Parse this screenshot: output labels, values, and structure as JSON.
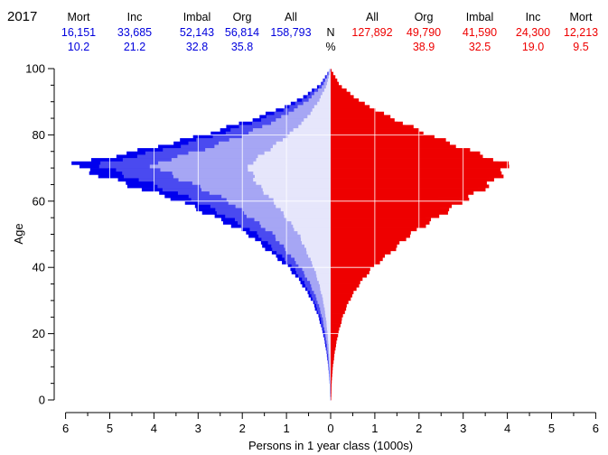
{
  "chart_data": {
    "type": "population-pyramid",
    "year": "2017",
    "xlabel": "Persons in 1 year class (1000s)",
    "ylabel": "Age",
    "xlim": [
      -6,
      6
    ],
    "ylim": [
      0,
      100
    ],
    "x_ticks": [
      "6",
      "5",
      "4",
      "3",
      "2",
      "1",
      "0",
      "1",
      "2",
      "3",
      "4",
      "5",
      "6"
    ],
    "y_ticks": [
      "0",
      "20",
      "40",
      "60",
      "80",
      "100"
    ],
    "row_labels": {
      "n": "N",
      "pct": "%"
    },
    "left": {
      "color": "#0000ee",
      "headers": [
        "Mort",
        "Inc",
        "Imbal",
        "Org",
        "All"
      ],
      "n": [
        "16,151",
        "33,685",
        "52,143",
        "56,814",
        "158,793"
      ],
      "pct": [
        "10.2",
        "21.2",
        "32.8",
        "35.8"
      ]
    },
    "right": {
      "color": "#ee0000",
      "headers": [
        "All",
        "Org",
        "Imbal",
        "Inc",
        "Mort"
      ],
      "n": [
        "127,892",
        "49,790",
        "41,590",
        "24,300",
        "12,213"
      ],
      "pct": [
        "38.9",
        "32.5",
        "19.0",
        "9.5"
      ]
    },
    "series": [
      {
        "name": "Mort",
        "side": "left",
        "shade": 0,
        "ages": [
          0,
          5,
          10,
          15,
          20,
          25,
          30,
          35,
          40,
          45,
          50,
          55,
          60,
          65,
          70,
          71,
          72,
          75,
          80,
          85,
          90,
          95,
          100
        ],
        "values": [
          0.01,
          0.02,
          0.05,
          0.1,
          0.17,
          0.27,
          0.42,
          0.65,
          0.95,
          1.4,
          1.85,
          2.6,
          3.4,
          4.6,
          5.7,
          5.8,
          5.6,
          4.4,
          2.9,
          1.7,
          0.8,
          0.25,
          0
        ]
      },
      {
        "name": "Inc",
        "side": "left",
        "shade": 1,
        "ages": [
          0,
          5,
          10,
          15,
          20,
          25,
          30,
          35,
          40,
          45,
          50,
          55,
          60,
          65,
          70,
          71,
          72,
          75,
          80,
          85,
          90,
          95,
          100
        ],
        "values": [
          0.01,
          0.02,
          0.045,
          0.09,
          0.15,
          0.24,
          0.38,
          0.58,
          0.85,
          1.25,
          1.65,
          2.3,
          3.0,
          4.0,
          5.1,
          5.2,
          5.0,
          3.9,
          2.55,
          1.5,
          0.7,
          0.22,
          0
        ]
      },
      {
        "name": "Imbal",
        "side": "left",
        "shade": 2,
        "ages": [
          0,
          5,
          10,
          15,
          20,
          25,
          30,
          35,
          40,
          45,
          50,
          55,
          60,
          65,
          70,
          71,
          72,
          75,
          80,
          85,
          90,
          95,
          100
        ],
        "values": [
          0.01,
          0.015,
          0.035,
          0.07,
          0.12,
          0.19,
          0.3,
          0.46,
          0.68,
          1.0,
          1.3,
          1.8,
          2.3,
          3.1,
          3.95,
          4.0,
          3.85,
          3.0,
          1.95,
          1.15,
          0.55,
          0.17,
          0
        ]
      },
      {
        "name": "Org",
        "side": "left",
        "shade": 3,
        "ages": [
          0,
          5,
          10,
          15,
          20,
          25,
          30,
          35,
          40,
          45,
          50,
          55,
          60,
          65,
          70,
          71,
          72,
          75,
          80,
          85,
          90,
          95,
          100
        ],
        "values": [
          0.005,
          0.01,
          0.02,
          0.04,
          0.07,
          0.11,
          0.17,
          0.26,
          0.38,
          0.55,
          0.72,
          1.0,
          1.3,
          1.65,
          1.85,
          1.85,
          1.75,
          1.45,
          0.95,
          0.55,
          0.28,
          0.09,
          0
        ]
      },
      {
        "name": "All",
        "side": "right",
        "shade": 3,
        "ages": [
          0,
          5,
          10,
          15,
          20,
          25,
          30,
          35,
          40,
          45,
          50,
          55,
          60,
          65,
          70,
          71,
          72,
          75,
          80,
          85,
          90,
          95,
          100
        ],
        "values": [
          0.005,
          0.01,
          0.02,
          0.04,
          0.07,
          0.11,
          0.17,
          0.26,
          0.38,
          0.55,
          0.72,
          1.0,
          1.3,
          1.55,
          1.7,
          1.7,
          1.6,
          1.3,
          0.9,
          0.52,
          0.26,
          0.08,
          0
        ]
      },
      {
        "name": "Org",
        "side": "right",
        "shade": 2,
        "ages": [
          0,
          5,
          10,
          15,
          20,
          25,
          30,
          35,
          40,
          45,
          50,
          55,
          60,
          65,
          70,
          71,
          72,
          75,
          80,
          85,
          90,
          95,
          100
        ],
        "values": [
          0.01,
          0.015,
          0.035,
          0.07,
          0.12,
          0.19,
          0.3,
          0.46,
          0.68,
          1.0,
          1.3,
          1.75,
          2.2,
          2.75,
          3.2,
          3.2,
          3.05,
          2.5,
          1.7,
          1.0,
          0.5,
          0.15,
          0
        ]
      },
      {
        "name": "Imbal",
        "side": "right",
        "shade": 1,
        "ages": [
          0,
          5,
          10,
          15,
          20,
          25,
          30,
          35,
          40,
          45,
          50,
          55,
          60,
          65,
          70,
          71,
          72,
          75,
          80,
          85,
          90,
          95,
          100
        ],
        "values": [
          0.01,
          0.02,
          0.045,
          0.09,
          0.15,
          0.24,
          0.38,
          0.58,
          0.85,
          1.25,
          1.6,
          2.15,
          2.7,
          3.3,
          3.75,
          3.8,
          3.6,
          2.95,
          2.05,
          1.25,
          0.6,
          0.19,
          0
        ]
      },
      {
        "name": "Inc",
        "side": "right",
        "shade": 0,
        "ages": [
          0,
          5,
          10,
          15,
          20,
          25,
          30,
          35,
          40,
          45,
          50,
          55,
          60,
          65,
          70,
          71,
          72,
          75,
          80,
          85,
          90,
          95,
          100
        ],
        "values": [
          0.01,
          0.02,
          0.05,
          0.1,
          0.17,
          0.27,
          0.42,
          0.65,
          0.95,
          1.4,
          1.8,
          2.4,
          3.0,
          3.6,
          4.0,
          4.0,
          3.85,
          3.2,
          2.25,
          1.4,
          0.68,
          0.21,
          0
        ]
      }
    ]
  }
}
